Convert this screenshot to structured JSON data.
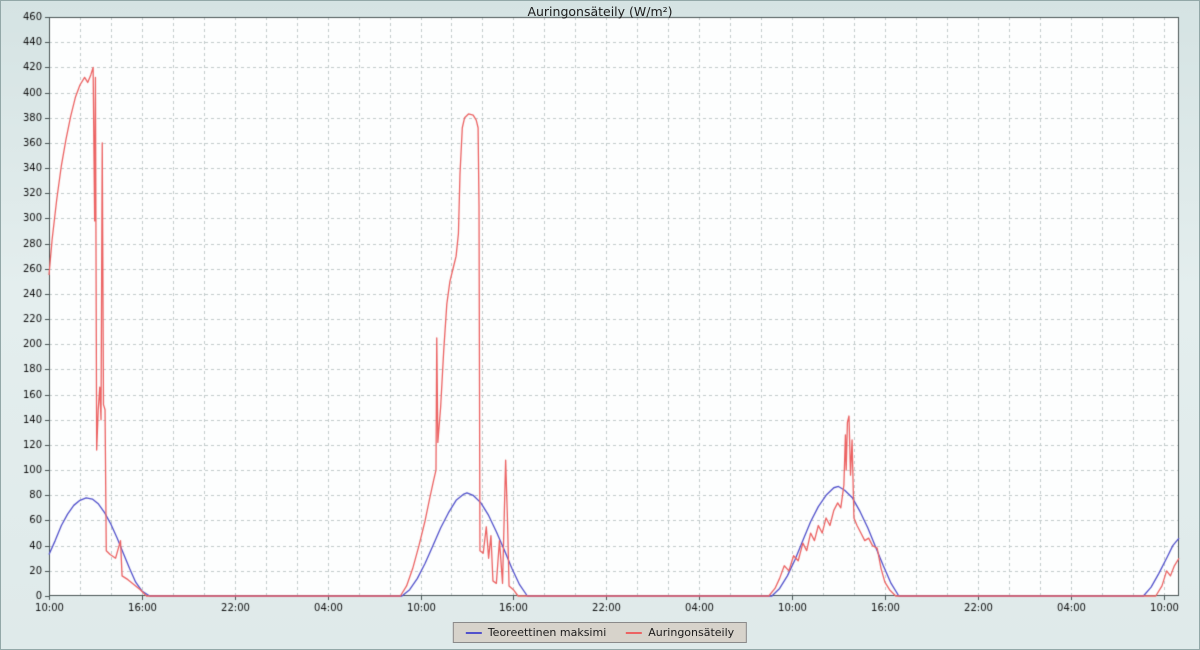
{
  "chart_data": {
    "type": "line",
    "title": "Auringonsäteily (W/m²)",
    "ylabel": "",
    "xlabel": "",
    "ylim": [
      0,
      460
    ],
    "ytick_step": 20,
    "xlim_hours": [
      0,
      73
    ],
    "x_major_step_hours": 6,
    "x_minor_step_hours": 2,
    "xtick_labels": [
      "10:00",
      "16:00",
      "22:00",
      "04:00",
      "10:00",
      "16:00",
      "22:00",
      "04:00",
      "10:00",
      "16:00",
      "22:00",
      "04:00",
      "10:00"
    ],
    "grid": true,
    "grid_style": "dashed",
    "grid_color": "#c3cccc",
    "axis_color": "#4a5555",
    "text_color": "#101010",
    "plot_bg": "#fdfefe",
    "legend_position": "bottom-center",
    "series": [
      {
        "name": "Teoreettinen maksimi",
        "color": "#5252cc",
        "points": [
          [
            0,
            33
          ],
          [
            0.4,
            44
          ],
          [
            0.8,
            56
          ],
          [
            1.2,
            65
          ],
          [
            1.6,
            72
          ],
          [
            2,
            76
          ],
          [
            2.4,
            78
          ],
          [
            2.8,
            77
          ],
          [
            3.2,
            73
          ],
          [
            3.6,
            66
          ],
          [
            4,
            57
          ],
          [
            4.4,
            46
          ],
          [
            4.8,
            34
          ],
          [
            5.2,
            22
          ],
          [
            5.6,
            11
          ],
          [
            6,
            4
          ],
          [
            6.5,
            0
          ],
          [
            22.8,
            0
          ],
          [
            23.3,
            5
          ],
          [
            23.8,
            14
          ],
          [
            24.3,
            26
          ],
          [
            24.8,
            40
          ],
          [
            25.3,
            54
          ],
          [
            25.8,
            66
          ],
          [
            26.3,
            76
          ],
          [
            26.8,
            81
          ],
          [
            27,
            82
          ],
          [
            27.4,
            80
          ],
          [
            27.9,
            74
          ],
          [
            28.4,
            64
          ],
          [
            28.9,
            51
          ],
          [
            29.4,
            37
          ],
          [
            29.9,
            22
          ],
          [
            30.4,
            9
          ],
          [
            30.9,
            0
          ],
          [
            46.7,
            0
          ],
          [
            47.2,
            6
          ],
          [
            47.7,
            16
          ],
          [
            48.2,
            29
          ],
          [
            48.7,
            44
          ],
          [
            49.2,
            59
          ],
          [
            49.7,
            71
          ],
          [
            50.2,
            80
          ],
          [
            50.7,
            86
          ],
          [
            51,
            87
          ],
          [
            51.4,
            84
          ],
          [
            51.9,
            78
          ],
          [
            52.4,
            67
          ],
          [
            52.9,
            54
          ],
          [
            53.4,
            39
          ],
          [
            53.9,
            24
          ],
          [
            54.4,
            10
          ],
          [
            54.9,
            0
          ],
          [
            70.7,
            0
          ],
          [
            71.2,
            7
          ],
          [
            71.7,
            18
          ],
          [
            72.2,
            30
          ],
          [
            72.6,
            40
          ],
          [
            73,
            46
          ]
        ]
      },
      {
        "name": "Auringonsäteily",
        "color": "#ec6363",
        "points": [
          [
            0,
            255
          ],
          [
            0.2,
            283
          ],
          [
            0.5,
            315
          ],
          [
            0.8,
            342
          ],
          [
            1.1,
            363
          ],
          [
            1.4,
            381
          ],
          [
            1.7,
            396
          ],
          [
            2,
            406
          ],
          [
            2.3,
            412
          ],
          [
            2.5,
            408
          ],
          [
            2.7,
            414
          ],
          [
            2.85,
            420
          ],
          [
            2.95,
            298
          ],
          [
            3,
            412
          ],
          [
            3.08,
            116
          ],
          [
            3.18,
            148
          ],
          [
            3.28,
            166
          ],
          [
            3.36,
            140
          ],
          [
            3.44,
            360
          ],
          [
            3.52,
            152
          ],
          [
            3.62,
            148
          ],
          [
            3.7,
            36
          ],
          [
            3.95,
            33
          ],
          [
            4.3,
            30
          ],
          [
            4.62,
            44
          ],
          [
            4.72,
            16
          ],
          [
            5.1,
            13
          ],
          [
            5.5,
            9
          ],
          [
            5.9,
            5
          ],
          [
            6.3,
            0
          ],
          [
            22.7,
            0
          ],
          [
            23.1,
            8
          ],
          [
            23.5,
            22
          ],
          [
            23.9,
            40
          ],
          [
            24.3,
            60
          ],
          [
            24.6,
            78
          ],
          [
            24.85,
            92
          ],
          [
            25,
            100
          ],
          [
            25.05,
            205
          ],
          [
            25.12,
            122
          ],
          [
            25.3,
            150
          ],
          [
            25.5,
            195
          ],
          [
            25.7,
            232
          ],
          [
            25.9,
            250
          ],
          [
            26.1,
            260
          ],
          [
            26.3,
            270
          ],
          [
            26.45,
            288
          ],
          [
            26.55,
            335
          ],
          [
            26.7,
            372
          ],
          [
            26.85,
            380
          ],
          [
            27.1,
            383
          ],
          [
            27.4,
            382
          ],
          [
            27.6,
            378
          ],
          [
            27.72,
            372
          ],
          [
            27.78,
            310
          ],
          [
            27.84,
            36
          ],
          [
            28.05,
            34
          ],
          [
            28.25,
            55
          ],
          [
            28.4,
            30
          ],
          [
            28.55,
            48
          ],
          [
            28.68,
            12
          ],
          [
            28.9,
            10
          ],
          [
            29.1,
            44
          ],
          [
            29.3,
            10
          ],
          [
            29.5,
            108
          ],
          [
            29.62,
            60
          ],
          [
            29.72,
            8
          ],
          [
            30,
            5
          ],
          [
            30.3,
            0
          ],
          [
            46.5,
            0
          ],
          [
            46.9,
            6
          ],
          [
            47.2,
            14
          ],
          [
            47.5,
            24
          ],
          [
            47.8,
            20
          ],
          [
            48.1,
            32
          ],
          [
            48.4,
            28
          ],
          [
            48.7,
            42
          ],
          [
            48.95,
            36
          ],
          [
            49.2,
            50
          ],
          [
            49.45,
            44
          ],
          [
            49.7,
            56
          ],
          [
            49.95,
            50
          ],
          [
            50.2,
            62
          ],
          [
            50.45,
            56
          ],
          [
            50.7,
            68
          ],
          [
            50.95,
            74
          ],
          [
            51.15,
            70
          ],
          [
            51.35,
            88
          ],
          [
            51.45,
            128
          ],
          [
            51.5,
            100
          ],
          [
            51.58,
            138
          ],
          [
            51.68,
            143
          ],
          [
            51.78,
            96
          ],
          [
            51.88,
            124
          ],
          [
            52,
            62
          ],
          [
            52.2,
            56
          ],
          [
            52.45,
            50
          ],
          [
            52.7,
            44
          ],
          [
            52.95,
            46
          ],
          [
            53.2,
            40
          ],
          [
            53.5,
            38
          ],
          [
            53.75,
            22
          ],
          [
            54,
            11
          ],
          [
            54.3,
            5
          ],
          [
            54.7,
            0
          ],
          [
            71.5,
            0
          ],
          [
            71.9,
            8
          ],
          [
            72.2,
            20
          ],
          [
            72.45,
            16
          ],
          [
            72.7,
            24
          ],
          [
            73,
            30
          ]
        ]
      }
    ]
  }
}
